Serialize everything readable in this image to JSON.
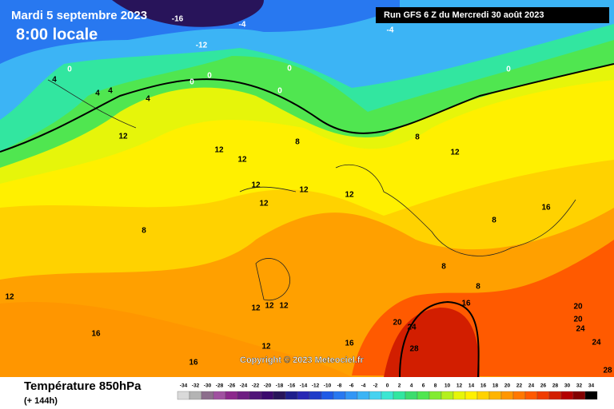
{
  "header": {
    "date": "Mardi 5 septembre 2023",
    "time": "8:00 locale",
    "run": "Run GFS 6 Z du Mercredi 30 août 2023",
    "copyright": "Copyright © 2023 Meteociel.fr"
  },
  "footer": {
    "title": "Température 850hPa",
    "lead": "(+ 144h)"
  },
  "legend": {
    "values": [
      -34,
      -32,
      -30,
      -28,
      -26,
      -24,
      -22,
      -20,
      -18,
      -16,
      -14,
      -12,
      -10,
      -8,
      -6,
      -4,
      -2,
      0,
      2,
      4,
      6,
      8,
      10,
      12,
      14,
      16,
      18,
      20,
      22,
      24,
      26,
      28,
      30,
      32,
      34
    ],
    "colors": [
      "#d9d9d9",
      "#b4b4b4",
      "#8c6e8c",
      "#a050a0",
      "#8c288c",
      "#6e1e82",
      "#501478",
      "#3c0a6e",
      "#28145a",
      "#1e1e8c",
      "#2828b4",
      "#1e3cc8",
      "#1e5ae6",
      "#2878f0",
      "#3296f5",
      "#3cb4f5",
      "#46d2f0",
      "#3ce6d2",
      "#32e6a0",
      "#3cdc6e",
      "#50e650",
      "#82eb32",
      "#b4f01e",
      "#e6f50a",
      "#fff000",
      "#ffd200",
      "#ffb400",
      "#ff9600",
      "#ff7800",
      "#ff5a00",
      "#f03c00",
      "#d21e00",
      "#b40000",
      "#820000",
      "#000000"
    ]
  },
  "map": {
    "labels": [
      -16,
      -12,
      -4,
      -4,
      0,
      0,
      0,
      0,
      0,
      0,
      4,
      4,
      4,
      4,
      8,
      8,
      8,
      8,
      8,
      8,
      12,
      12,
      12,
      12,
      12,
      12,
      12,
      12,
      12,
      12,
      12,
      12,
      12,
      16,
      16,
      16,
      16,
      16,
      20,
      20,
      20,
      24,
      24,
      24,
      28,
      28
    ]
  }
}
